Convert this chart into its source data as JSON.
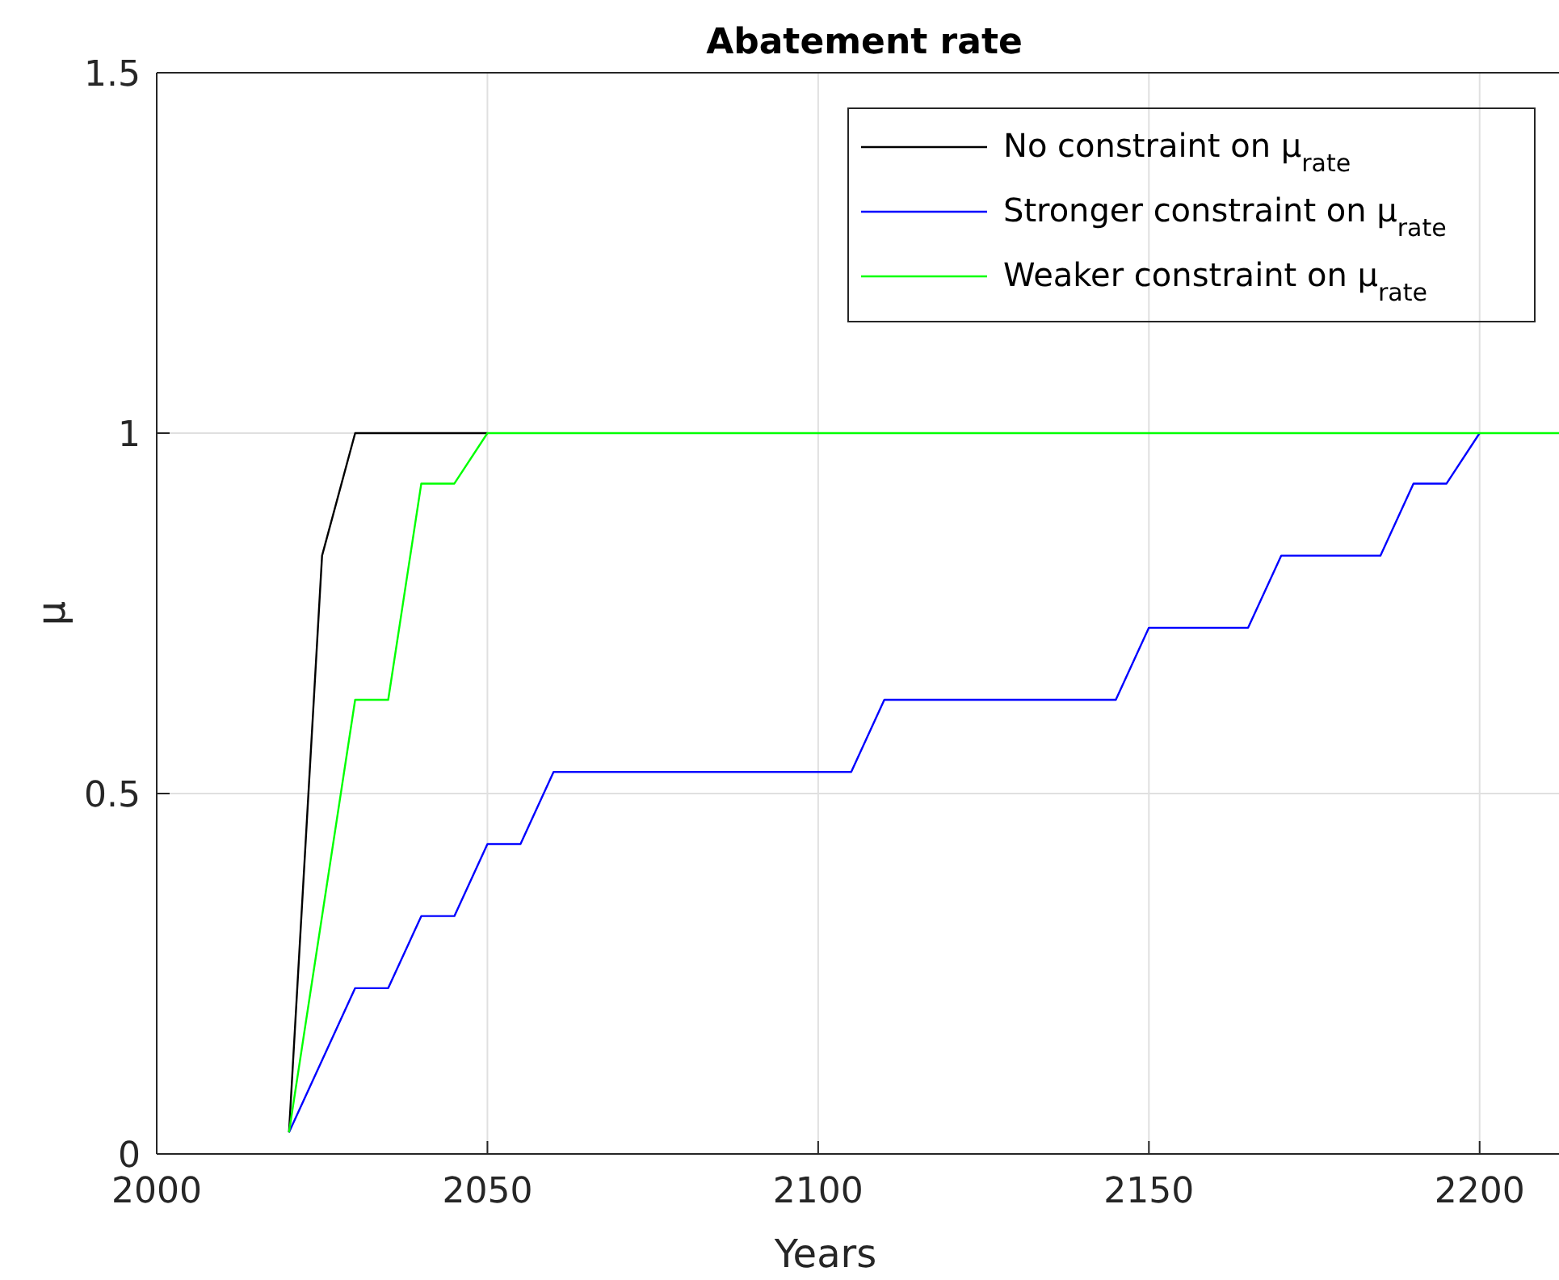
{
  "chart_data": {
    "type": "line",
    "title": "Abatement rate",
    "xlabel": "Years",
    "ylabel": "μ",
    "xlim": [
      2000,
      2212
    ],
    "xticks": [
      2000,
      2050,
      2100,
      2150,
      2200
    ],
    "ylim": [
      0,
      1.5
    ],
    "yticks": [
      0,
      {
        "value": 0.5,
        "label": "0.5"
      },
      1,
      1.5
    ],
    "grid": true,
    "legend": "top right",
    "line_style": "solid",
    "series": [
      {
        "name": "No constraint on μ$_{rate}$",
        "color": "#000000",
        "x": [
          2020,
          2025,
          2030,
          2050
        ],
        "values": [
          0.03,
          0.83,
          1,
          1
        ]
      },
      {
        "name": "Stronger constraint on μ$_{rate}$",
        "color": "#0000ff",
        "x": [
          2020,
          2030,
          2035,
          2040,
          2045,
          2050,
          2055,
          2060,
          2105,
          2110,
          2145,
          2150,
          2165,
          2170,
          2185,
          2190,
          2195,
          2200
        ],
        "values": [
          0.03,
          0.23,
          0.23,
          0.33,
          0.33,
          0.43,
          0.43,
          0.53,
          0.53,
          0.63,
          0.63,
          0.73,
          0.73,
          0.83,
          0.83,
          0.93,
          0.93,
          1
        ]
      },
      {
        "name": "Weaker constraint on μ$_{rate}$",
        "color": "#00ff00",
        "x": [
          2020,
          2030,
          2035,
          2040,
          2045,
          2050,
          2212
        ],
        "values": [
          0.03,
          0.63,
          0.63,
          0.93,
          0.93,
          1,
          1
        ]
      }
    ]
  }
}
